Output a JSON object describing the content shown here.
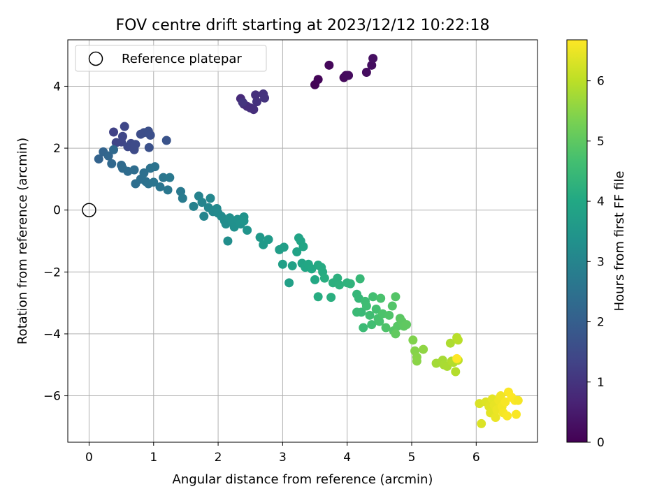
{
  "chart_data": {
    "type": "scatter",
    "title": "FOV centre drift starting at 2023/12/12 10:22:18",
    "xlabel": "Angular distance from reference (arcmin)",
    "ylabel": "Rotation from reference (arcmin)",
    "xlim": [
      -0.33,
      6.95
    ],
    "ylim": [
      -7.5,
      5.5
    ],
    "xticks": [
      "0",
      "1",
      "2",
      "3",
      "4",
      "5",
      "6"
    ],
    "yticks": [
      "−6",
      "−4",
      "−2",
      "0",
      "2",
      "4"
    ],
    "grid": true,
    "legend": {
      "position": "top-left",
      "entries": [
        "Reference platepar"
      ]
    },
    "reference": {
      "x": 0,
      "y": 0
    },
    "colorbar": {
      "label": "Hours from first FF file",
      "range": [
        0,
        6.68
      ],
      "ticks": [
        "0",
        "1",
        "2",
        "3",
        "4",
        "5",
        "6"
      ],
      "colormap": "viridis"
    },
    "points": [
      [
        3.5,
        4.05,
        0.05
      ],
      [
        3.55,
        4.22,
        0.08
      ],
      [
        3.72,
        4.68,
        0.12
      ],
      [
        3.95,
        4.28,
        0.15
      ],
      [
        3.98,
        4.35,
        0.18
      ],
      [
        4.02,
        4.35,
        0.2
      ],
      [
        4.3,
        4.45,
        0.22
      ],
      [
        4.38,
        4.68,
        0.25
      ],
      [
        4.4,
        4.9,
        0.28
      ],
      [
        2.35,
        3.6,
        0.8
      ],
      [
        2.4,
        3.42,
        0.82
      ],
      [
        2.45,
        3.35,
        0.85
      ],
      [
        2.5,
        3.3,
        0.88
      ],
      [
        2.55,
        3.25,
        0.9
      ],
      [
        2.58,
        3.72,
        0.92
      ],
      [
        2.6,
        3.5,
        0.95
      ],
      [
        2.7,
        3.75,
        0.98
      ],
      [
        2.72,
        3.62,
        1.0
      ],
      [
        2.38,
        3.48,
        1.02
      ],
      [
        0.38,
        2.52,
        1.3
      ],
      [
        0.42,
        2.18,
        1.35
      ],
      [
        0.5,
        2.2,
        1.38
      ],
      [
        0.52,
        2.38,
        1.4
      ],
      [
        0.55,
        2.7,
        1.42
      ],
      [
        0.6,
        2.05,
        1.45
      ],
      [
        0.65,
        2.15,
        1.48
      ],
      [
        0.7,
        1.95,
        1.5
      ],
      [
        0.72,
        2.12,
        1.52
      ],
      [
        0.8,
        2.45,
        1.55
      ],
      [
        0.85,
        2.5,
        1.58
      ],
      [
        0.92,
        2.55,
        1.6
      ],
      [
        0.95,
        2.42,
        1.62
      ],
      [
        0.93,
        2.02,
        1.65
      ],
      [
        1.2,
        2.25,
        1.7
      ],
      [
        0.15,
        1.65,
        2.1
      ],
      [
        0.22,
        1.88,
        2.15
      ],
      [
        0.3,
        1.75,
        2.2
      ],
      [
        0.35,
        1.5,
        2.25
      ],
      [
        0.38,
        1.95,
        2.28
      ],
      [
        0.5,
        1.45,
        2.3
      ],
      [
        0.52,
        1.35,
        2.32
      ],
      [
        0.6,
        1.25,
        2.35
      ],
      [
        0.7,
        1.3,
        2.38
      ],
      [
        0.72,
        0.85,
        2.4
      ],
      [
        0.8,
        1.0,
        2.42
      ],
      [
        0.85,
        1.2,
        2.45
      ],
      [
        0.88,
        0.92,
        2.48
      ],
      [
        0.92,
        0.85,
        2.5
      ],
      [
        0.95,
        1.35,
        2.52
      ],
      [
        1.02,
        1.4,
        2.55
      ],
      [
        1.0,
        0.9,
        2.58
      ],
      [
        1.1,
        0.75,
        2.6
      ],
      [
        1.15,
        1.05,
        2.62
      ],
      [
        1.22,
        0.65,
        2.65
      ],
      [
        1.25,
        1.05,
        2.68
      ],
      [
        1.42,
        0.6,
        2.7
      ],
      [
        1.45,
        0.38,
        2.75
      ],
      [
        1.62,
        0.12,
        2.9
      ],
      [
        1.7,
        0.45,
        2.95
      ],
      [
        1.75,
        0.25,
        3.0
      ],
      [
        1.78,
        -0.2,
        3.02
      ],
      [
        1.85,
        0.08,
        3.05
      ],
      [
        1.88,
        0.38,
        3.08
      ],
      [
        1.92,
        -0.05,
        3.1
      ],
      [
        1.98,
        0.05,
        3.12
      ],
      [
        2.0,
        -0.1,
        3.15
      ],
      [
        2.05,
        -0.2,
        3.18
      ],
      [
        2.1,
        -0.35,
        3.2
      ],
      [
        2.12,
        -0.45,
        3.22
      ],
      [
        2.15,
        -1.0,
        3.25
      ],
      [
        2.18,
        -0.25,
        3.28
      ],
      [
        2.22,
        -0.38,
        3.3
      ],
      [
        2.25,
        -0.55,
        3.32
      ],
      [
        2.3,
        -0.3,
        3.35
      ],
      [
        2.35,
        -0.45,
        3.38
      ],
      [
        2.4,
        -0.22,
        3.4
      ],
      [
        2.45,
        -0.65,
        3.42
      ],
      [
        2.4,
        -0.35,
        3.45
      ],
      [
        2.65,
        -0.88,
        3.55
      ],
      [
        2.7,
        -1.12,
        3.58
      ],
      [
        2.78,
        -0.95,
        3.6
      ],
      [
        2.95,
        -1.28,
        3.7
      ],
      [
        3.02,
        -1.2,
        3.72
      ],
      [
        3.0,
        -1.75,
        3.75
      ],
      [
        3.1,
        -2.35,
        3.78
      ],
      [
        3.15,
        -1.8,
        3.8
      ],
      [
        3.22,
        -1.35,
        3.82
      ],
      [
        3.25,
        -0.9,
        3.85
      ],
      [
        3.28,
        -1.0,
        3.88
      ],
      [
        3.3,
        -1.72,
        3.9
      ],
      [
        3.32,
        -1.18,
        3.92
      ],
      [
        3.35,
        -1.85,
        3.95
      ],
      [
        3.4,
        -1.75,
        3.98
      ],
      [
        3.45,
        -1.9,
        4.0
      ],
      [
        3.5,
        -2.25,
        4.02
      ],
      [
        3.55,
        -1.78,
        4.05
      ],
      [
        3.6,
        -1.85,
        4.08
      ],
      [
        3.62,
        -2.0,
        4.1
      ],
      [
        3.55,
        -2.8,
        4.12
      ],
      [
        3.65,
        -2.2,
        4.15
      ],
      [
        3.75,
        -2.82,
        4.18
      ],
      [
        3.78,
        -2.35,
        4.2
      ],
      [
        3.85,
        -2.2,
        4.22
      ],
      [
        3.88,
        -2.42,
        4.25
      ],
      [
        4.0,
        -2.35,
        4.28
      ],
      [
        4.05,
        -2.38,
        4.3
      ],
      [
        4.15,
        -2.72,
        4.4
      ],
      [
        4.18,
        -2.85,
        4.42
      ],
      [
        4.2,
        -2.22,
        4.45
      ],
      [
        4.22,
        -3.3,
        4.48
      ],
      [
        4.15,
        -3.3,
        4.5
      ],
      [
        4.25,
        -3.8,
        4.52
      ],
      [
        4.28,
        -2.95,
        4.55
      ],
      [
        4.3,
        -3.1,
        4.58
      ],
      [
        4.35,
        -3.4,
        4.6
      ],
      [
        4.38,
        -3.7,
        4.62
      ],
      [
        4.4,
        -2.8,
        4.65
      ],
      [
        4.45,
        -3.2,
        4.68
      ],
      [
        4.48,
        -3.5,
        4.7
      ],
      [
        4.5,
        -3.6,
        4.72
      ],
      [
        4.52,
        -2.85,
        4.75
      ],
      [
        4.55,
        -3.35,
        4.78
      ],
      [
        4.6,
        -3.8,
        4.8
      ],
      [
        4.65,
        -3.4,
        4.82
      ],
      [
        4.7,
        -3.1,
        4.85
      ],
      [
        4.75,
        -2.8,
        4.88
      ],
      [
        4.72,
        -3.9,
        4.9
      ],
      [
        4.78,
        -3.75,
        4.92
      ],
      [
        4.82,
        -3.5,
        4.95
      ],
      [
        4.85,
        -3.6,
        4.98
      ],
      [
        4.88,
        -3.75,
        5.0
      ],
      [
        4.92,
        -3.7,
        5.02
      ],
      [
        4.75,
        -4.0,
        5.05
      ],
      [
        5.02,
        -4.2,
        5.4
      ],
      [
        5.05,
        -4.55,
        5.45
      ],
      [
        5.08,
        -4.75,
        5.48
      ],
      [
        5.08,
        -4.88,
        5.5
      ],
      [
        5.18,
        -4.5,
        5.55
      ],
      [
        5.38,
        -4.95,
        5.75
      ],
      [
        5.48,
        -4.85,
        5.78
      ],
      [
        5.5,
        -5.0,
        5.8
      ],
      [
        5.55,
        -5.05,
        5.82
      ],
      [
        5.6,
        -4.3,
        5.85
      ],
      [
        5.62,
        -4.88,
        5.88
      ],
      [
        5.65,
        -4.92,
        5.9
      ],
      [
        5.68,
        -5.22,
        5.92
      ],
      [
        5.7,
        -4.12,
        5.95
      ],
      [
        5.72,
        -4.2,
        5.97
      ],
      [
        5.72,
        -4.85,
        6.0
      ],
      [
        6.05,
        -6.25,
        6.3
      ],
      [
        6.08,
        -6.9,
        6.32
      ],
      [
        6.15,
        -6.2,
        6.35
      ],
      [
        6.2,
        -6.35,
        6.38
      ],
      [
        6.22,
        -6.55,
        6.4
      ],
      [
        6.25,
        -6.1,
        6.42
      ],
      [
        6.28,
        -6.3,
        6.45
      ],
      [
        6.3,
        -6.7,
        6.48
      ],
      [
        6.32,
        -6.45,
        6.5
      ],
      [
        6.35,
        -6.15,
        6.52
      ],
      [
        6.38,
        -6.0,
        6.55
      ],
      [
        6.4,
        -6.35,
        6.57
      ],
      [
        6.42,
        -6.55,
        6.6
      ],
      [
        6.45,
        -6.2,
        6.62
      ],
      [
        6.48,
        -6.65,
        6.64
      ],
      [
        6.5,
        -5.88,
        6.66
      ],
      [
        6.55,
        -6.05,
        6.68
      ],
      [
        6.6,
        -6.15,
        6.66
      ],
      [
        6.62,
        -6.6,
        6.64
      ],
      [
        6.65,
        -6.15,
        6.6
      ],
      [
        5.7,
        -4.8,
        6.68
      ]
    ]
  }
}
